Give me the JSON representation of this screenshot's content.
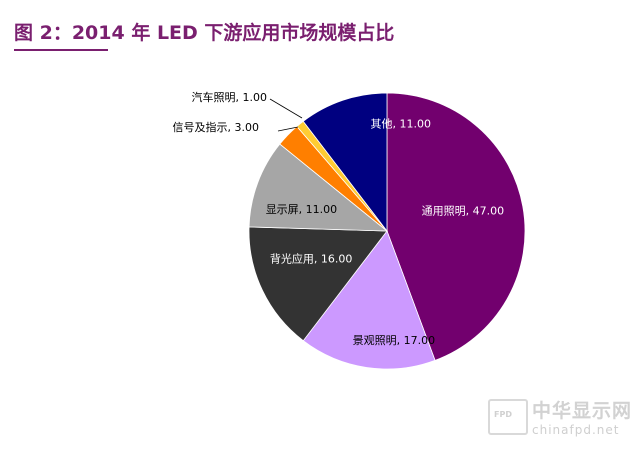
{
  "header": {
    "title": "图 2：2014 年 LED 下游应用市场规模占比"
  },
  "chart_data": {
    "type": "pie",
    "title": "图 2：2014 年 LED 下游应用市场规模占比",
    "start_angle_deg": 0,
    "direction": "clockwise",
    "slices": [
      {
        "name": "通用照明",
        "value": 47.0,
        "label": "通用照明, 47.00",
        "color": "#72006e"
      },
      {
        "name": "景观照明",
        "value": 17.0,
        "label": "景观照明, 17.00",
        "color": "#cc99ff"
      },
      {
        "name": "背光应用",
        "value": 16.0,
        "label": "背光应用, 16.00",
        "color": "#333333"
      },
      {
        "name": "显示屏",
        "value": 11.0,
        "label": "显示屏, 11.00",
        "color": "#a6a6a6"
      },
      {
        "name": "信号及指示",
        "value": 3.0,
        "label": "信号及指示, 3.00",
        "color": "#ff7f00"
      },
      {
        "name": "汽车照明",
        "value": 1.0,
        "label": "汽车照明, 1.00",
        "color": "#ffcc33"
      },
      {
        "name": "其他",
        "value": 11.0,
        "label": "其他, 11.00",
        "color": "#000080"
      }
    ]
  },
  "watermark": {
    "badge": "FPD",
    "name": "中华显示网",
    "url": "chinafpd.net"
  }
}
